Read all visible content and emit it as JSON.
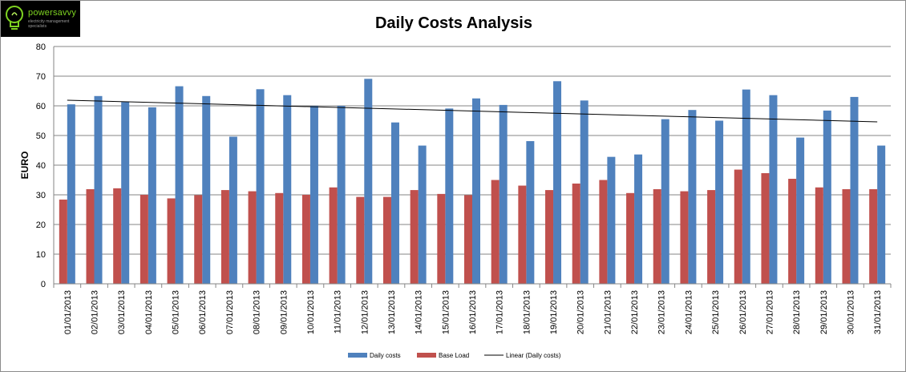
{
  "logo": {
    "brand": "powersavvy",
    "tagline": "electricity management specialists"
  },
  "chart_data": {
    "type": "bar",
    "title": "Daily Costs Analysis",
    "xlabel": "",
    "ylabel": "EURO",
    "ylim": [
      0,
      80
    ],
    "yticks": [
      0,
      10,
      20,
      30,
      40,
      50,
      60,
      70,
      80
    ],
    "grid": true,
    "legend_position": "bottom",
    "categories": [
      "01/01/2013",
      "02/01/2013",
      "03/01/2013",
      "04/01/2013",
      "05/01/2013",
      "06/01/2013",
      "07/01/2013",
      "08/01/2013",
      "09/01/2013",
      "10/01/2013",
      "11/01/2013",
      "12/01/2013",
      "13/01/2013",
      "14/01/2013",
      "15/01/2013",
      "16/01/2013",
      "17/01/2013",
      "18/01/2013",
      "19/01/2013",
      "20/01/2013",
      "21/01/2013",
      "22/01/2013",
      "23/01/2013",
      "24/01/2013",
      "25/01/2013",
      "26/01/2013",
      "27/01/2013",
      "28/01/2013",
      "29/01/2013",
      "30/01/2013",
      "31/01/2013"
    ],
    "series": [
      {
        "name": "Daily costs",
        "color": "#4f81bd",
        "values": [
          60.5,
          63.3,
          61.3,
          59.5,
          66.6,
          63.3,
          49.6,
          65.6,
          63.6,
          60.0,
          60.0,
          69.1,
          54.4,
          46.6,
          59.1,
          62.5,
          60.3,
          48.1,
          68.3,
          61.8,
          42.8,
          43.6,
          55.5,
          58.6,
          55.0,
          65.5,
          63.6,
          49.3,
          58.4,
          63.0,
          46.6
        ]
      },
      {
        "name": "Base Load",
        "color": "#c0504d",
        "values": [
          28.4,
          31.9,
          32.2,
          30.0,
          28.8,
          29.9,
          31.6,
          31.2,
          30.6,
          30.0,
          32.5,
          29.3,
          29.3,
          31.6,
          30.3,
          29.9,
          35.0,
          33.1,
          31.6,
          33.8,
          35.0,
          30.6,
          31.9,
          31.2,
          31.6,
          38.5,
          37.3,
          35.4,
          32.5,
          31.9,
          31.9
        ]
      }
    ],
    "trendline": {
      "name": "Linear (Daily costs)",
      "of_series": "Daily costs",
      "color": "#000000",
      "start": 61.9,
      "end": 54.6
    }
  }
}
